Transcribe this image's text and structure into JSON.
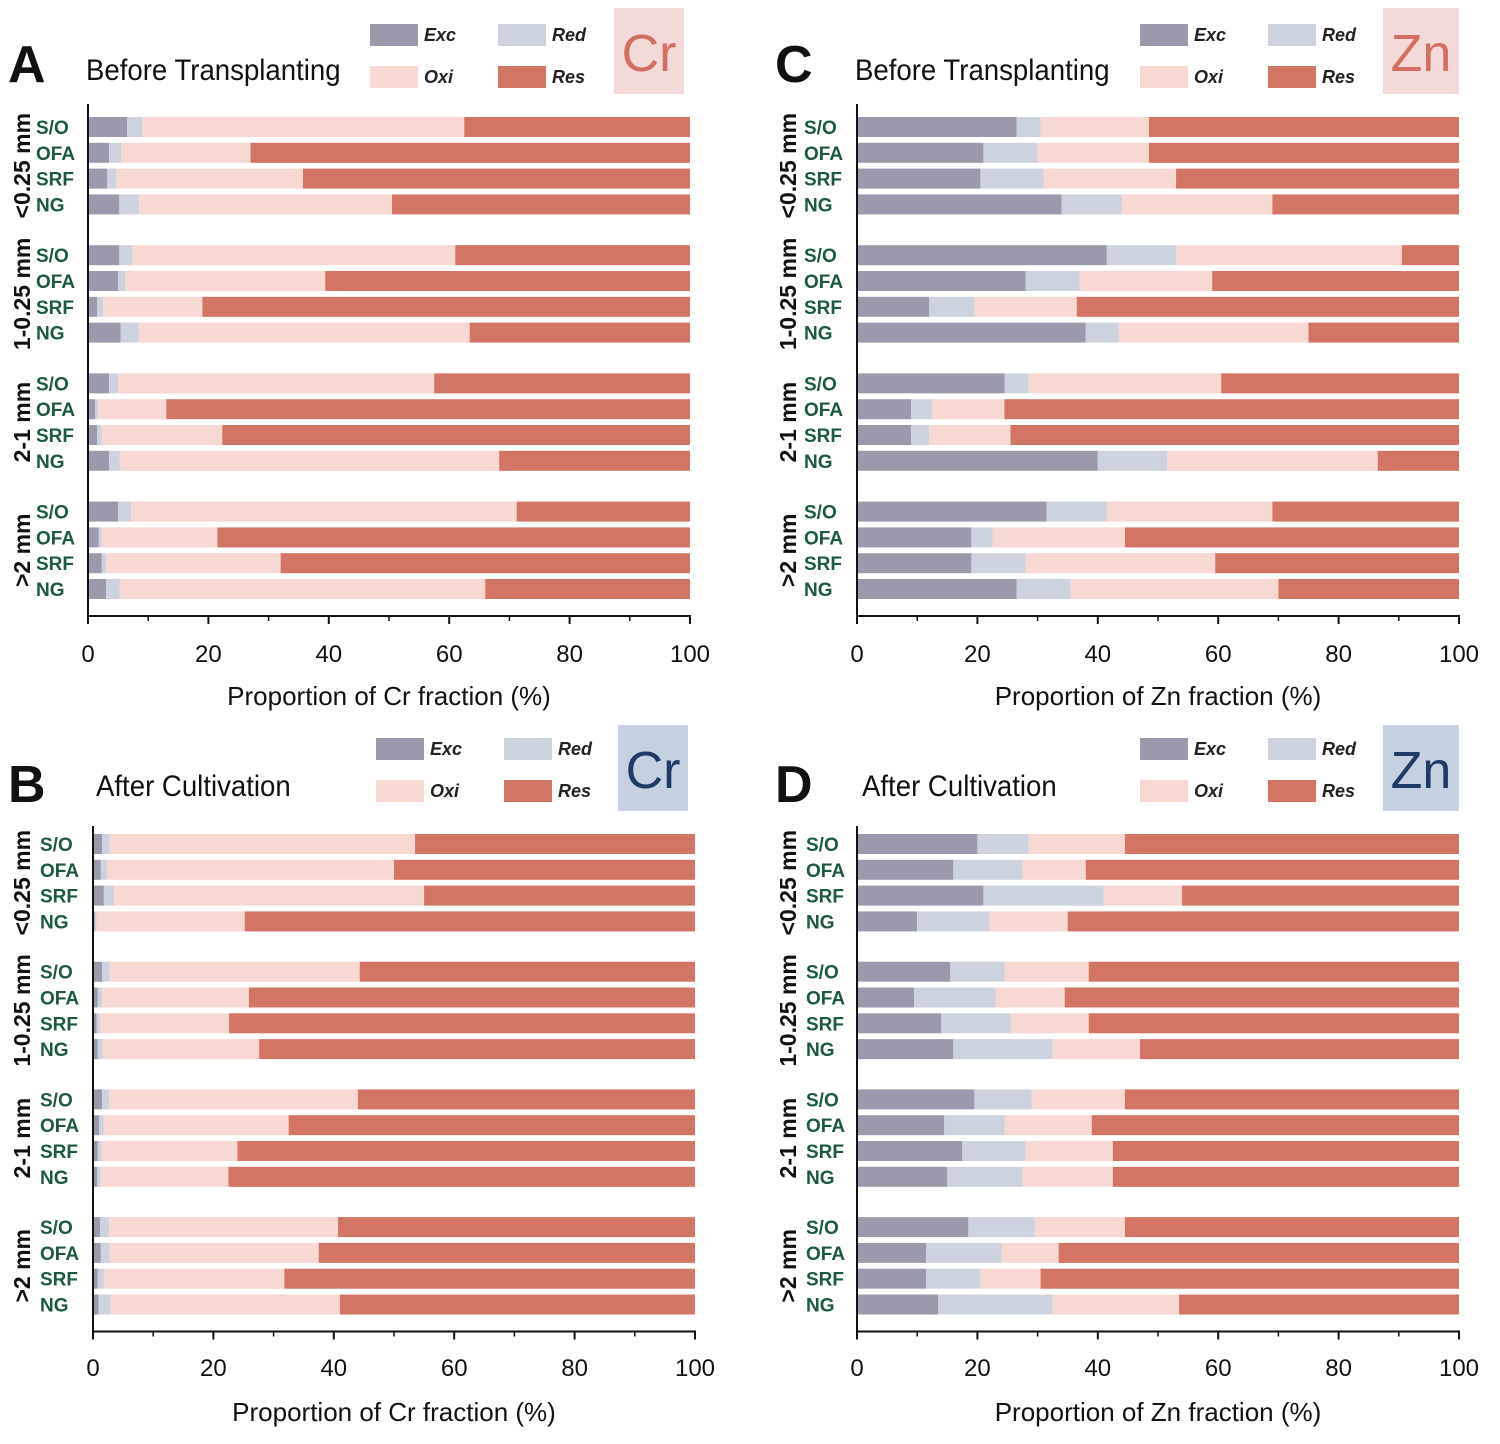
{
  "legend": {
    "labels": [
      "Exc",
      "Red",
      "Oxi",
      "Res"
    ]
  },
  "colors": {
    "Exc": "#9b9aac",
    "Red": "#ccd3de",
    "Oxi": "#f8d8d3",
    "Res": "#d37565",
    "label_green": "#1b5a3c",
    "cr_before_box": "#f3dad8",
    "cr_before_text": "#d26f62",
    "after_box": "#c5d0e0",
    "after_text": "#1e3a66"
  },
  "chart_data": [
    {
      "type": "bar",
      "stacked": true,
      "orientation": "horizontal",
      "panel_label": "A",
      "title": "Before Transplanting",
      "element": "Cr",
      "xlabel": "Proportion of Cr fraction (%)",
      "xlim": [
        0,
        100
      ],
      "xticks": [
        "0",
        "20",
        "40",
        "60",
        "80",
        "100"
      ],
      "legend_position": "top-right",
      "grid": false,
      "groups": [
        {
          "name": "<0.25 mm",
          "rows": [
            {
              "label": "S/O",
              "values": [
                6.5,
                2.5,
                53.5,
                37.5
              ]
            },
            {
              "label": "OFA",
              "values": [
                3.5,
                2.0,
                21.5,
                73.0
              ]
            },
            {
              "label": "SRF",
              "values": [
                3.2,
                1.5,
                31.0,
                64.3
              ]
            },
            {
              "label": "NG",
              "values": [
                5.2,
                3.3,
                42.0,
                49.5
              ]
            }
          ]
        },
        {
          "name": "1-0.25 mm",
          "rows": [
            {
              "label": "S/O",
              "values": [
                5.2,
                2.2,
                53.6,
                39.0
              ]
            },
            {
              "label": "OFA",
              "values": [
                5.0,
                1.2,
                33.2,
                60.6
              ]
            },
            {
              "label": "SRF",
              "values": [
                1.5,
                1.0,
                16.5,
                81.0
              ]
            },
            {
              "label": "NG",
              "values": [
                5.4,
                3.0,
                55.0,
                36.6
              ]
            }
          ]
        },
        {
          "name": "2-1 mm",
          "rows": [
            {
              "label": "S/O",
              "values": [
                3.5,
                1.5,
                52.5,
                42.5
              ]
            },
            {
              "label": "OFA",
              "values": [
                1.2,
                0.5,
                11.3,
                87.0
              ]
            },
            {
              "label": "SRF",
              "values": [
                1.5,
                0.8,
                20.0,
                77.7
              ]
            },
            {
              "label": "NG",
              "values": [
                3.5,
                1.8,
                63.0,
                31.7
              ]
            }
          ]
        },
        {
          "name": ">2 mm",
          "rows": [
            {
              "label": "S/O",
              "values": [
                5.0,
                2.2,
                64.0,
                28.8
              ]
            },
            {
              "label": "OFA",
              "values": [
                1.8,
                0.5,
                19.2,
                78.5
              ]
            },
            {
              "label": "SRF",
              "values": [
                2.3,
                0.7,
                29.0,
                68.0
              ]
            },
            {
              "label": "NG",
              "values": [
                3.0,
                2.3,
                60.7,
                34.0
              ]
            }
          ]
        }
      ]
    },
    {
      "type": "bar",
      "stacked": true,
      "orientation": "horizontal",
      "panel_label": "B",
      "title": "After Cultivation",
      "element": "Cr",
      "xlabel": "Proportion of Cr fraction (%)",
      "xlim": [
        0,
        100
      ],
      "xticks": [
        "0",
        "20",
        "40",
        "60",
        "80",
        "100"
      ],
      "legend_position": "top-right",
      "grid": false,
      "groups": [
        {
          "name": "<0.25 mm",
          "rows": [
            {
              "label": "S/O",
              "values": [
                1.5,
                1.3,
                50.7,
                46.5
              ]
            },
            {
              "label": "OFA",
              "values": [
                1.3,
                1.0,
                47.7,
                50.0
              ]
            },
            {
              "label": "SRF",
              "values": [
                1.8,
                1.7,
                51.5,
                45.0
              ]
            },
            {
              "label": "NG",
              "values": [
                0.3,
                0.3,
                24.6,
                74.8
              ]
            }
          ]
        },
        {
          "name": "1-0.25 mm",
          "rows": [
            {
              "label": "S/O",
              "values": [
                1.5,
                1.3,
                41.5,
                55.7
              ]
            },
            {
              "label": "OFA",
              "values": [
                0.8,
                0.7,
                24.4,
                74.1
              ]
            },
            {
              "label": "SRF",
              "values": [
                0.6,
                0.5,
                21.5,
                77.4
              ]
            },
            {
              "label": "NG",
              "values": [
                0.8,
                0.8,
                26.0,
                72.4
              ]
            }
          ]
        },
        {
          "name": "2-1 mm",
          "rows": [
            {
              "label": "S/O",
              "values": [
                1.5,
                1.2,
                41.3,
                56.0
              ]
            },
            {
              "label": "OFA",
              "values": [
                1.0,
                0.8,
                30.7,
                67.5
              ]
            },
            {
              "label": "SRF",
              "values": [
                0.8,
                0.6,
                22.6,
                76.0
              ]
            },
            {
              "label": "NG",
              "values": [
                0.7,
                0.6,
                21.2,
                77.5
              ]
            }
          ]
        },
        {
          "name": ">2 mm",
          "rows": [
            {
              "label": "S/O",
              "values": [
                1.2,
                1.5,
                38.0,
                59.3
              ]
            },
            {
              "label": "OFA",
              "values": [
                1.3,
                1.5,
                34.7,
                62.5
              ]
            },
            {
              "label": "SRF",
              "values": [
                0.8,
                1.0,
                30.0,
                68.2
              ]
            },
            {
              "label": "NG",
              "values": [
                0.9,
                2.0,
                38.1,
                59.0
              ]
            }
          ]
        }
      ]
    },
    {
      "type": "bar",
      "stacked": true,
      "orientation": "horizontal",
      "panel_label": "C",
      "title": "Before Transplanting",
      "element": "Zn",
      "xlabel": "Proportion of Zn fraction (%)",
      "xlim": [
        0,
        100
      ],
      "xticks": [
        "0",
        "20",
        "40",
        "60",
        "80",
        "100"
      ],
      "legend_position": "top-right",
      "grid": false,
      "groups": [
        {
          "name": "<0.25 mm",
          "rows": [
            {
              "label": "S/O",
              "values": [
                26.5,
                4.0,
                18.0,
                51.5
              ]
            },
            {
              "label": "OFA",
              "values": [
                21.0,
                9.0,
                18.5,
                51.5
              ]
            },
            {
              "label": "SRF",
              "values": [
                20.5,
                10.5,
                22.0,
                47.0
              ]
            },
            {
              "label": "NG",
              "values": [
                34.0,
                10.0,
                25.0,
                31.0
              ]
            }
          ]
        },
        {
          "name": "1-0.25 mm",
          "rows": [
            {
              "label": "S/O",
              "values": [
                41.5,
                11.5,
                37.5,
                9.5
              ]
            },
            {
              "label": "OFA",
              "values": [
                28.0,
                9.0,
                22.0,
                41.0
              ]
            },
            {
              "label": "SRF",
              "values": [
                12.0,
                7.5,
                17.0,
                63.5
              ]
            },
            {
              "label": "NG",
              "values": [
                38.0,
                5.5,
                31.5,
                25.0
              ]
            }
          ]
        },
        {
          "name": "2-1 mm",
          "rows": [
            {
              "label": "S/O",
              "values": [
                24.5,
                4.0,
                32.0,
                39.5
              ]
            },
            {
              "label": "OFA",
              "values": [
                9.0,
                3.5,
                12.0,
                75.5
              ]
            },
            {
              "label": "SRF",
              "values": [
                9.0,
                3.0,
                13.5,
                74.5
              ]
            },
            {
              "label": "NG",
              "values": [
                40.0,
                11.5,
                35.0,
                13.5
              ]
            }
          ]
        },
        {
          "name": ">2 mm",
          "rows": [
            {
              "label": "S/O",
              "values": [
                31.5,
                10.0,
                27.5,
                31.0
              ]
            },
            {
              "label": "OFA",
              "values": [
                19.0,
                3.5,
                22.0,
                55.5
              ]
            },
            {
              "label": "SRF",
              "values": [
                19.0,
                9.0,
                31.5,
                40.5
              ]
            },
            {
              "label": "NG",
              "values": [
                26.5,
                9.0,
                34.5,
                30.0
              ]
            }
          ]
        }
      ]
    },
    {
      "type": "bar",
      "stacked": true,
      "orientation": "horizontal",
      "panel_label": "D",
      "title": "After Cultivation",
      "element": "Zn",
      "xlabel": "Proportion of Zn fraction (%)",
      "xlim": [
        0,
        100
      ],
      "xticks": [
        "0",
        "20",
        "40",
        "60",
        "80",
        "100"
      ],
      "legend_position": "top-right",
      "grid": false,
      "groups": [
        {
          "name": "<0.25 mm",
          "rows": [
            {
              "label": "S/O",
              "values": [
                20.0,
                8.5,
                16.0,
                55.5
              ]
            },
            {
              "label": "OFA",
              "values": [
                16.0,
                11.5,
                10.5,
                62.0
              ]
            },
            {
              "label": "SRF",
              "values": [
                21.0,
                20.0,
                13.0,
                46.0
              ]
            },
            {
              "label": "NG",
              "values": [
                10.0,
                12.0,
                13.0,
                65.0
              ]
            }
          ]
        },
        {
          "name": "1-0.25 mm",
          "rows": [
            {
              "label": "S/O",
              "values": [
                15.5,
                9.0,
                14.0,
                61.5
              ]
            },
            {
              "label": "OFA",
              "values": [
                9.5,
                13.5,
                11.5,
                65.5
              ]
            },
            {
              "label": "SRF",
              "values": [
                14.0,
                11.5,
                13.0,
                61.5
              ]
            },
            {
              "label": "NG",
              "values": [
                16.0,
                16.5,
                14.5,
                53.0
              ]
            }
          ]
        },
        {
          "name": "2-1 mm",
          "rows": [
            {
              "label": "S/O",
              "values": [
                19.5,
                9.5,
                15.5,
                55.5
              ]
            },
            {
              "label": "OFA",
              "values": [
                14.5,
                10.0,
                14.5,
                61.0
              ]
            },
            {
              "label": "SRF",
              "values": [
                17.5,
                10.5,
                14.5,
                57.5
              ]
            },
            {
              "label": "NG",
              "values": [
                15.0,
                12.5,
                15.0,
                57.5
              ]
            }
          ]
        },
        {
          "name": ">2 mm",
          "rows": [
            {
              "label": "S/O",
              "values": [
                18.5,
                11.0,
                15.0,
                55.5
              ]
            },
            {
              "label": "OFA",
              "values": [
                11.5,
                12.5,
                9.5,
                66.5
              ]
            },
            {
              "label": "SRF",
              "values": [
                11.5,
                9.0,
                10.0,
                69.5
              ]
            },
            {
              "label": "NG",
              "values": [
                13.5,
                19.0,
                21.0,
                46.5
              ]
            }
          ]
        }
      ]
    }
  ]
}
